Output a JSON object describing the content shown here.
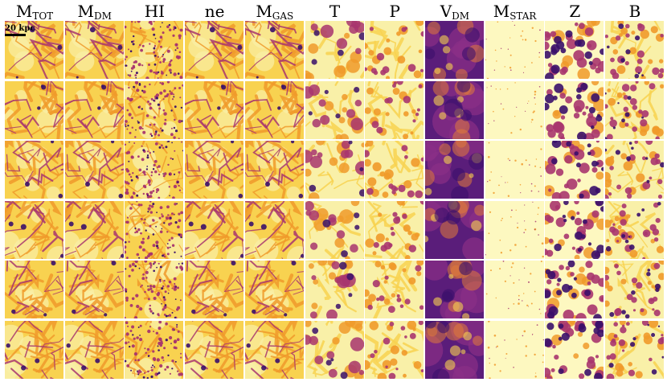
{
  "columns": [
    {
      "key": "mtot",
      "base": "M",
      "sub": "TOT",
      "style": "dense"
    },
    {
      "key": "mdm",
      "base": "M",
      "sub": "DM",
      "style": "dense"
    },
    {
      "key": "hi",
      "base": "HI",
      "sub": "",
      "style": "hi"
    },
    {
      "key": "ne",
      "base": "ne",
      "sub": "",
      "style": "dense"
    },
    {
      "key": "mgas",
      "base": "M",
      "sub": "GAS",
      "style": "dense"
    },
    {
      "key": "t",
      "base": "T",
      "sub": "",
      "style": "temp"
    },
    {
      "key": "p",
      "base": "P",
      "sub": "",
      "style": "press"
    },
    {
      "key": "vdm",
      "base": "V",
      "sub": "DM",
      "style": "vel"
    },
    {
      "key": "mstar",
      "base": "M",
      "sub": "STAR",
      "style": "star"
    },
    {
      "key": "z",
      "base": "Z",
      "sub": "",
      "style": "metal"
    },
    {
      "key": "b",
      "base": "B",
      "sub": "",
      "style": "mag"
    }
  ],
  "rows": 6,
  "scale_bar": {
    "label": "20 kpc"
  },
  "colors": {
    "pale": "#f9f0a8",
    "light": "#f8d250",
    "mid": "#f09a2a",
    "dark": "#a8356e",
    "deep": "#3a0f6a",
    "vel_bg": "#e07a3a"
  }
}
